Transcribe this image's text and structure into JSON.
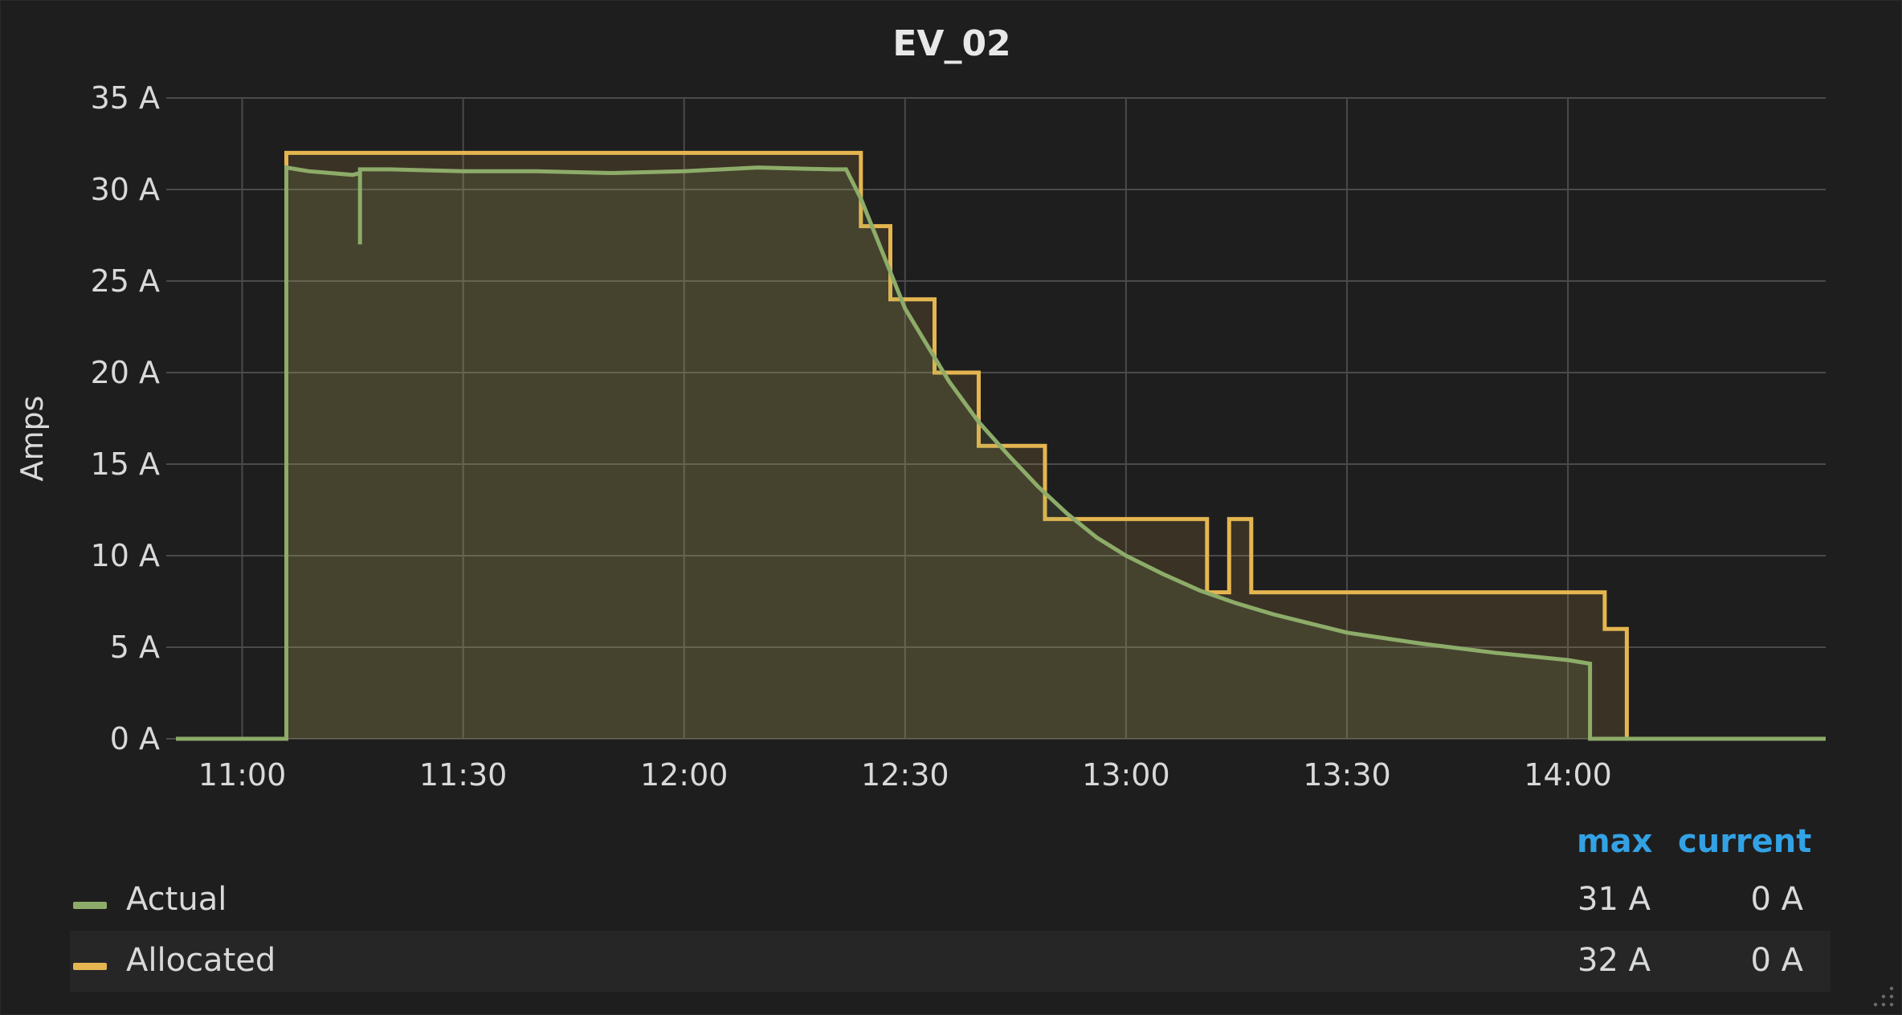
{
  "panel": {
    "title": "EV_02"
  },
  "colors": {
    "background": "#1f1e1f",
    "grid": "#4a4a4c",
    "actual": "#8dac69",
    "allocated": "#e5b650"
  },
  "chart_data": {
    "type": "line",
    "title": "EV_02",
    "ylabel": "Amps",
    "xlabel": "",
    "x_range": [
      "10:51",
      "14:35"
    ],
    "ylim": [
      0,
      35
    ],
    "y_ticks": [
      0,
      5,
      10,
      15,
      20,
      25,
      30,
      35
    ],
    "y_tick_labels": [
      "0 A",
      "5 A",
      "10 A",
      "15 A",
      "20 A",
      "25 A",
      "30 A",
      "35 A"
    ],
    "x_ticks": [
      "11:00",
      "11:30",
      "12:00",
      "12:30",
      "13:00",
      "13:30",
      "14:00"
    ],
    "grid": true,
    "legend_placement": "bottom",
    "series": [
      {
        "name": "Actual",
        "color": "#8dac69",
        "fill": true,
        "points": [
          [
            "10:51",
            0
          ],
          [
            "11:06",
            0
          ],
          [
            "11:06",
            31.2
          ],
          [
            "11:09",
            31.0
          ],
          [
            "11:12",
            30.9
          ],
          [
            "11:15",
            30.8
          ],
          [
            "11:16",
            30.9
          ],
          [
            "11:16",
            27.0
          ],
          [
            "11:16",
            31.1
          ],
          [
            "11:20",
            31.1
          ],
          [
            "11:30",
            31.0
          ],
          [
            "11:40",
            31.0
          ],
          [
            "11:50",
            30.9
          ],
          [
            "12:00",
            31.0
          ],
          [
            "12:10",
            31.2
          ],
          [
            "12:20",
            31.1
          ],
          [
            "12:22",
            31.1
          ],
          [
            "12:24",
            29.5
          ],
          [
            "12:27",
            26.5
          ],
          [
            "12:30",
            23.5
          ],
          [
            "12:33",
            21.5
          ],
          [
            "12:36",
            19.5
          ],
          [
            "12:40",
            17.3
          ],
          [
            "12:44",
            15.5
          ],
          [
            "12:48",
            13.8
          ],
          [
            "12:52",
            12.3
          ],
          [
            "12:56",
            11.0
          ],
          [
            "13:00",
            10.0
          ],
          [
            "13:05",
            9.0
          ],
          [
            "13:10",
            8.1
          ],
          [
            "13:15",
            7.4
          ],
          [
            "13:20",
            6.8
          ],
          [
            "13:25",
            6.3
          ],
          [
            "13:30",
            5.8
          ],
          [
            "13:40",
            5.2
          ],
          [
            "13:50",
            4.7
          ],
          [
            "14:00",
            4.3
          ],
          [
            "14:03",
            4.1
          ],
          [
            "14:03",
            0
          ],
          [
            "14:35",
            0
          ]
        ]
      },
      {
        "name": "Allocated",
        "color": "#e5b650",
        "fill": true,
        "points": [
          [
            "10:51",
            0
          ],
          [
            "11:06",
            0
          ],
          [
            "11:06",
            32
          ],
          [
            "12:24",
            32
          ],
          [
            "12:24",
            28
          ],
          [
            "12:28",
            28
          ],
          [
            "12:28",
            24
          ],
          [
            "12:34",
            24
          ],
          [
            "12:34",
            20
          ],
          [
            "12:40",
            20
          ],
          [
            "12:40",
            16
          ],
          [
            "12:49",
            16
          ],
          [
            "12:49",
            12
          ],
          [
            "13:11",
            12
          ],
          [
            "13:11",
            8
          ],
          [
            "13:14",
            8
          ],
          [
            "13:14",
            12
          ],
          [
            "13:17",
            12
          ],
          [
            "13:17",
            8
          ],
          [
            "14:05",
            8
          ],
          [
            "14:05",
            6
          ],
          [
            "14:08",
            6
          ],
          [
            "14:08",
            0
          ],
          [
            "14:35",
            0
          ]
        ]
      }
    ]
  },
  "legend": {
    "headers": {
      "max": "max",
      "current": "current"
    },
    "rows": [
      {
        "name": "Actual",
        "max": "31 A",
        "current": "0 A"
      },
      {
        "name": "Allocated",
        "max": "32 A",
        "current": "0 A"
      }
    ]
  },
  "icons": {
    "resize": "resize-handle-icon"
  }
}
